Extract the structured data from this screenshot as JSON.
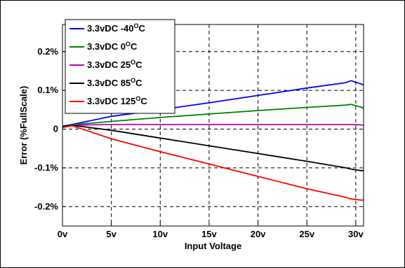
{
  "chart_data": {
    "type": "line",
    "title": "",
    "xlabel": "Input Voltage",
    "ylabel": "Error (%FullScale)",
    "xlim": [
      0,
      30.8
    ],
    "ylim": [
      -0.25,
      0.27
    ],
    "grid": true,
    "legend_position": "top-left",
    "x_ticks": [
      {
        "value": 0,
        "label": "0v"
      },
      {
        "value": 5,
        "label": "5v"
      },
      {
        "value": 10,
        "label": "10v"
      },
      {
        "value": 15,
        "label": "15v"
      },
      {
        "value": 20,
        "label": "20v"
      },
      {
        "value": 25,
        "label": "25v"
      },
      {
        "value": 30,
        "label": "30v"
      }
    ],
    "y_ticks": [
      {
        "value": 0.2,
        "label": "0.2%"
      },
      {
        "value": 0.1,
        "label": "0.1%"
      },
      {
        "value": 0,
        "label": "0"
      },
      {
        "value": -0.1,
        "label": "-0.1%"
      },
      {
        "value": -0.2,
        "label": "-0.2%"
      }
    ],
    "x": [
      0,
      1,
      5,
      10,
      15,
      20,
      25,
      29,
      29.5,
      30.5,
      30.8
    ],
    "series": [
      {
        "name": "3.3vDC -40",
        "unit": "C",
        "color": "#0000ff",
        "values": [
          0.008,
          0.012,
          0.033,
          0.05,
          0.068,
          0.087,
          0.106,
          0.12,
          0.125,
          0.117,
          0.114
        ]
      },
      {
        "name": "3.3vDC 0",
        "unit": "C",
        "color": "#008000",
        "values": [
          0.007,
          0.011,
          0.02,
          0.03,
          0.039,
          0.048,
          0.056,
          0.062,
          0.064,
          0.057,
          0.054
        ]
      },
      {
        "name": "3.3vDC 25",
        "unit": "C",
        "color": "#c000c0",
        "values": [
          0.005,
          0.01,
          0.012,
          0.012,
          0.012,
          0.012,
          0.012,
          0.012,
          0.012,
          0.011,
          0.01
        ]
      },
      {
        "name": "3.3vDC 85",
        "unit": "C",
        "color": "#000000",
        "values": [
          0.006,
          0.01,
          -0.003,
          -0.023,
          -0.043,
          -0.063,
          -0.083,
          -0.1,
          -0.103,
          -0.107,
          -0.107
        ]
      },
      {
        "name": "3.3vDC 125",
        "unit": "C",
        "color": "#ff0000",
        "values": [
          0.004,
          0.009,
          -0.025,
          -0.058,
          -0.09,
          -0.122,
          -0.154,
          -0.176,
          -0.18,
          -0.183,
          -0.183
        ]
      }
    ]
  }
}
